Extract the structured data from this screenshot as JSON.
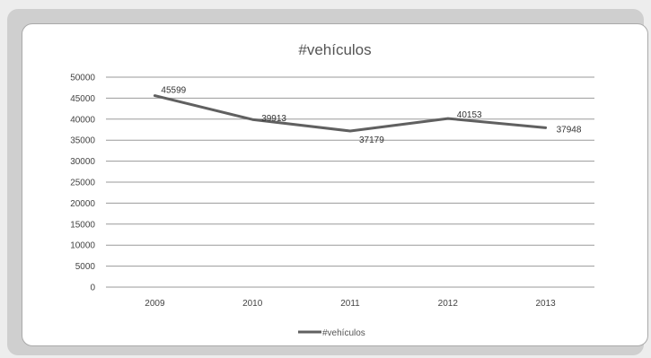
{
  "chart_data": {
    "type": "line",
    "title": "#vehículos",
    "categories": [
      "2009",
      "2010",
      "2011",
      "2012",
      "2013"
    ],
    "series": [
      {
        "name": "#vehículos",
        "values": [
          45599,
          39913,
          37179,
          40153,
          37948
        ]
      }
    ],
    "ylim": [
      0,
      50000
    ],
    "yticks": [
      0,
      5000,
      10000,
      15000,
      20000,
      25000,
      30000,
      35000,
      40000,
      45000,
      50000
    ],
    "grid": true,
    "legend": "bottom",
    "colors": {
      "line": "#606060",
      "grid": "#9a9a9a"
    }
  }
}
